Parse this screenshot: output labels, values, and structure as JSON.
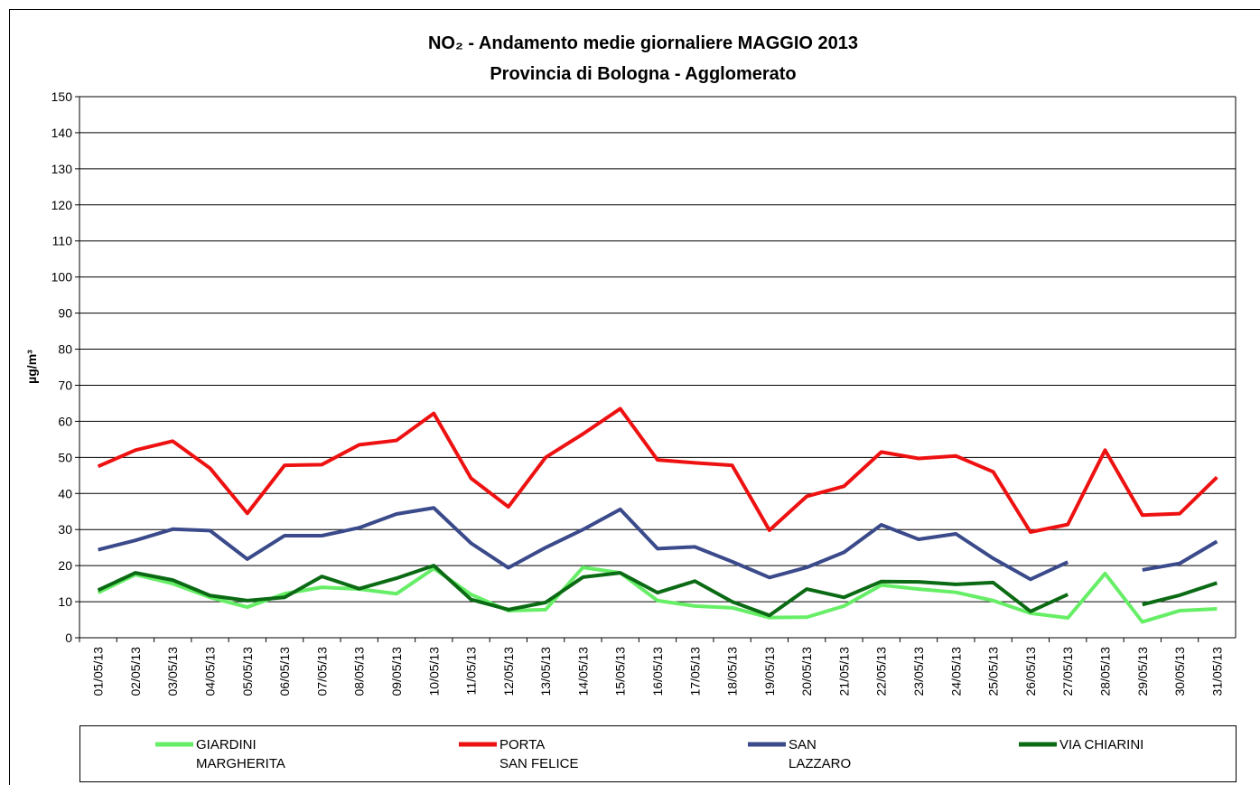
{
  "chart_data": {
    "type": "line",
    "title": "NO₂ - Andamento medie giornaliere MAGGIO 2013",
    "subtitle": "Provincia di Bologna - Agglomerato",
    "y_label": "µg/m³",
    "categories": [
      "01/05/13",
      "02/05/13",
      "03/05/13",
      "04/05/13",
      "05/05/13",
      "06/05/13",
      "07/05/13",
      "08/05/13",
      "09/05/13",
      "10/05/13",
      "11/05/13",
      "12/05/13",
      "13/05/13",
      "14/05/13",
      "15/05/13",
      "16/05/13",
      "17/05/13",
      "18/05/13",
      "19/05/13",
      "20/05/13",
      "21/05/13",
      "22/05/13",
      "23/05/13",
      "24/05/13",
      "25/05/13",
      "26/05/13",
      "27/05/13",
      "28/05/13",
      "29/05/13",
      "30/05/13",
      "31/05/13"
    ],
    "series": [
      {
        "name": "GIARDINI\nMARGHERITA",
        "color": "#66ee66",
        "values": [
          12.5,
          17.5,
          15,
          11.2,
          8.5,
          12.2,
          14,
          13.5,
          12.2,
          19.2,
          12,
          7.5,
          7.8,
          19.5,
          18,
          10.3,
          8.8,
          8.3,
          5.6,
          5.7,
          8.8,
          14.6,
          13.5,
          12.6,
          10.3,
          6.8,
          5.5,
          17.8,
          4.4,
          7.5,
          8
        ]
      },
      {
        "name": "PORTA\nSAN FELICE",
        "color": "#ee1111",
        "values": [
          47.5,
          52,
          54.5,
          47,
          34.5,
          47.8,
          48,
          53.5,
          54.7,
          62.2,
          44.2,
          36.3,
          50,
          56.5,
          63.5,
          49.3,
          48.5,
          47.8,
          29.8,
          39.2,
          42,
          51.5,
          49.7,
          50.4,
          46,
          29.3,
          31.4,
          52,
          34,
          34.4,
          44.5
        ]
      },
      {
        "name": "SAN\nLAZZARO",
        "color": "#3a4a8a",
        "values": [
          24.4,
          27,
          30.1,
          29.7,
          21.8,
          28.3,
          28.3,
          30.5,
          34.3,
          36,
          26.2,
          19.4,
          25,
          30,
          35.6,
          24.7,
          25.2,
          21.1,
          16.7,
          19.5,
          23.7,
          31.3,
          27.3,
          28.8,
          22,
          16.2,
          21,
          null,
          18.8,
          20.6,
          26.7
        ]
      },
      {
        "name": "VIA CHIARINI",
        "color": "#0b6a14",
        "values": [
          13.2,
          18,
          16,
          11.7,
          10.3,
          11.2,
          17,
          13.6,
          16.5,
          20,
          10.6,
          7.8,
          9.8,
          16.8,
          18,
          12.5,
          15.7,
          10,
          6.2,
          13.5,
          11.2,
          15.6,
          15.5,
          14.8,
          15.3,
          7.3,
          12,
          null,
          9.2,
          11.8,
          15.2
        ]
      }
    ],
    "ylim": [
      0,
      150
    ],
    "yticks": [
      0,
      10,
      20,
      30,
      40,
      50,
      60,
      70,
      80,
      90,
      100,
      110,
      120,
      130,
      140,
      150
    ],
    "grid": true,
    "legend": "bottom"
  }
}
